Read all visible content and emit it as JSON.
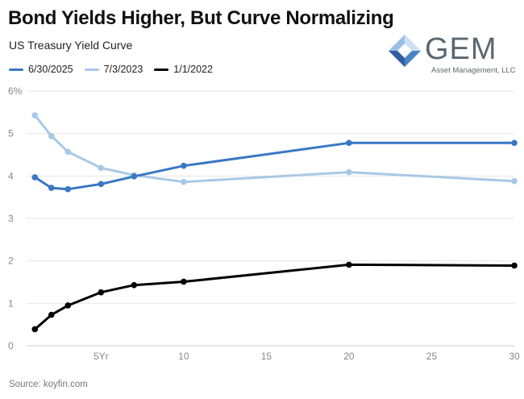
{
  "header": {
    "title": "Bond Yields Higher, But Curve Normalizing",
    "subtitle": "US Treasury Yield Curve"
  },
  "logo": {
    "name": "GEM",
    "tagline": "Asset Management, LLC"
  },
  "source": "Source: koyfin.com",
  "chart_data": {
    "type": "line",
    "title": "Bond Yields Higher, But Curve Normalizing",
    "subtitle": "US Treasury Yield Curve",
    "xlabel": "",
    "ylabel": "",
    "xlim": [
      0.5,
      30
    ],
    "ylim": [
      0,
      6
    ],
    "x_ticks": [
      {
        "value": 5,
        "label": "5Yr"
      },
      {
        "value": 10,
        "label": "10"
      },
      {
        "value": 15,
        "label": "15"
      },
      {
        "value": 20,
        "label": "20"
      },
      {
        "value": 25,
        "label": "25"
      },
      {
        "value": 30,
        "label": "30"
      }
    ],
    "y_ticks": [
      {
        "value": 0,
        "label": "0"
      },
      {
        "value": 1,
        "label": "1"
      },
      {
        "value": 2,
        "label": "2"
      },
      {
        "value": 3,
        "label": "3"
      },
      {
        "value": 4,
        "label": "4"
      },
      {
        "value": 5,
        "label": "5"
      },
      {
        "value": 6,
        "label": "6%"
      }
    ],
    "grid": true,
    "legend_position": "top-left",
    "series": [
      {
        "name": "6/30/2025",
        "color": "#3a78c3",
        "points": [
          [
            1,
            3.97
          ],
          [
            2,
            3.72
          ],
          [
            3,
            3.69
          ],
          [
            5,
            3.81
          ],
          [
            7,
            3.99
          ],
          [
            10,
            4.24
          ],
          [
            20,
            4.78
          ],
          [
            30,
            4.78
          ]
        ]
      },
      {
        "name": "7/3/2023",
        "color": "#a9c8e6",
        "points": [
          [
            1,
            5.43
          ],
          [
            2,
            4.94
          ],
          [
            3,
            4.57
          ],
          [
            5,
            4.19
          ],
          [
            7,
            4.02
          ],
          [
            10,
            3.86
          ],
          [
            20,
            4.09
          ],
          [
            30,
            3.88
          ]
        ]
      },
      {
        "name": "1/1/2022",
        "color": "#000000",
        "points": [
          [
            1,
            0.39
          ],
          [
            2,
            0.73
          ],
          [
            3,
            0.95
          ],
          [
            5,
            1.26
          ],
          [
            7,
            1.43
          ],
          [
            10,
            1.51
          ],
          [
            20,
            1.91
          ],
          [
            30,
            1.89
          ]
        ]
      }
    ]
  }
}
